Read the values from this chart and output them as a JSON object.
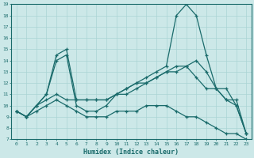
{
  "xlabel": "Humidex (Indice chaleur)",
  "bg_color": "#cce8e8",
  "line_color": "#1a6b6b",
  "grid_color": "#aad4d4",
  "xlim": [
    -0.5,
    23.5
  ],
  "ylim": [
    7,
    19
  ],
  "xticks": [
    0,
    1,
    2,
    3,
    4,
    5,
    6,
    7,
    8,
    9,
    10,
    11,
    12,
    13,
    14,
    15,
    16,
    17,
    18,
    19,
    20,
    21,
    22,
    23
  ],
  "yticks": [
    7,
    8,
    9,
    10,
    11,
    12,
    13,
    14,
    15,
    16,
    17,
    18,
    19
  ],
  "series": [
    {
      "x": [
        0,
        1,
        2,
        3,
        4,
        5,
        6,
        7,
        8,
        9,
        10,
        11,
        12,
        13,
        14,
        15,
        16,
        17,
        18,
        19,
        20,
        21,
        22,
        23
      ],
      "y": [
        9.5,
        9.0,
        10.0,
        11.0,
        14.5,
        15.0,
        10.5,
        10.5,
        10.5,
        10.5,
        11.0,
        11.0,
        11.5,
        12.0,
        12.5,
        13.0,
        13.5,
        13.5,
        14.0,
        13.0,
        11.5,
        10.5,
        10.0,
        7.5
      ],
      "marker": "+"
    },
    {
      "x": [
        0,
        1,
        2,
        3,
        4,
        5,
        6,
        7,
        8,
        9,
        10,
        11,
        12,
        13,
        14,
        15,
        16,
        17,
        18,
        19,
        20,
        21,
        22,
        23
      ],
      "y": [
        9.5,
        9.0,
        10.0,
        11.0,
        14.0,
        14.5,
        10.0,
        9.5,
        9.5,
        10.0,
        11.0,
        11.5,
        12.0,
        12.5,
        13.0,
        13.5,
        18.0,
        19.0,
        18.0,
        14.5,
        11.5,
        10.5,
        10.5,
        7.5
      ],
      "marker": "+"
    },
    {
      "x": [
        0,
        1,
        2,
        3,
        4,
        5,
        6,
        7,
        8,
        9,
        10,
        11,
        12,
        13,
        14,
        15,
        16,
        17,
        18,
        19,
        20,
        21,
        22,
        23
      ],
      "y": [
        9.5,
        9.0,
        10.0,
        10.5,
        11.0,
        10.5,
        10.5,
        10.5,
        10.5,
        10.5,
        11.0,
        11.5,
        12.0,
        12.0,
        12.5,
        13.0,
        13.0,
        13.5,
        12.5,
        11.5,
        11.5,
        11.5,
        10.0,
        7.5
      ],
      "marker": "+"
    },
    {
      "x": [
        0,
        1,
        2,
        3,
        4,
        5,
        6,
        7,
        8,
        9,
        10,
        11,
        12,
        13,
        14,
        15,
        16,
        17,
        18,
        19,
        20,
        21,
        22,
        23
      ],
      "y": [
        9.5,
        9.0,
        9.5,
        10.0,
        10.5,
        10.0,
        9.5,
        9.0,
        9.0,
        9.0,
        9.5,
        9.5,
        9.5,
        10.0,
        10.0,
        10.0,
        9.5,
        9.0,
        9.0,
        8.5,
        8.0,
        7.5,
        7.5,
        7.0
      ],
      "marker": "+"
    }
  ]
}
